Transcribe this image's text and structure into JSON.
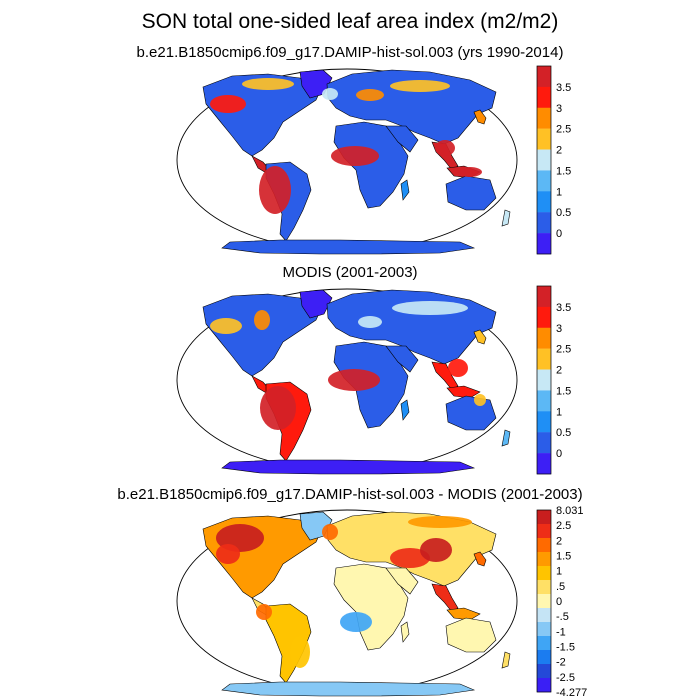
{
  "figure": {
    "title": "SON total one-sided leaf area index (m2/m2)"
  },
  "panels": [
    {
      "subtitle": "b.e21.B1850cmip6.f09_g17.DAMIP-hist-sol.003 (yrs 1990-2014)",
      "colorbar_labels": [
        "3.5",
        "3",
        "2.5",
        "2",
        "1.5",
        "1",
        "0.5",
        "0"
      ],
      "colors": [
        "#d32127",
        "#ff1a0d",
        "#ff8c00",
        "#ffc125",
        "#c7e8f5",
        "#5cb8f5",
        "#1f8ff5",
        "#2b5de8",
        "#3d1ff5"
      ]
    },
    {
      "subtitle": "MODIS (2001-2003)",
      "colorbar_labels": [
        "3.5",
        "3",
        "2.5",
        "2",
        "1.5",
        "1",
        "0.5",
        "0"
      ],
      "colors": [
        "#d32127",
        "#ff1a0d",
        "#ff8c00",
        "#ffc125",
        "#c7e8f5",
        "#5cb8f5",
        "#1f8ff5",
        "#2b5de8",
        "#3d1ff5"
      ]
    },
    {
      "subtitle": "b.e21.B1850cmip6.f09_g17.DAMIP-hist-sol.003 - MODIS (2001-2003)",
      "colorbar_labels": [
        "8.031",
        "2.5",
        "2",
        "1.5",
        "1",
        ".5",
        "0",
        "-.5",
        "-1",
        "-1.5",
        "-2",
        "-2.5",
        "-4.277"
      ],
      "colors": [
        "#c81e1e",
        "#ee2d17",
        "#ff6a00",
        "#ff9a00",
        "#ffc400",
        "#ffe066",
        "#fff7b0",
        "#c5e4f5",
        "#86c8f5",
        "#3fa5f5",
        "#1b7cf0",
        "#2449d8",
        "#3a1ff5"
      ]
    }
  ]
}
